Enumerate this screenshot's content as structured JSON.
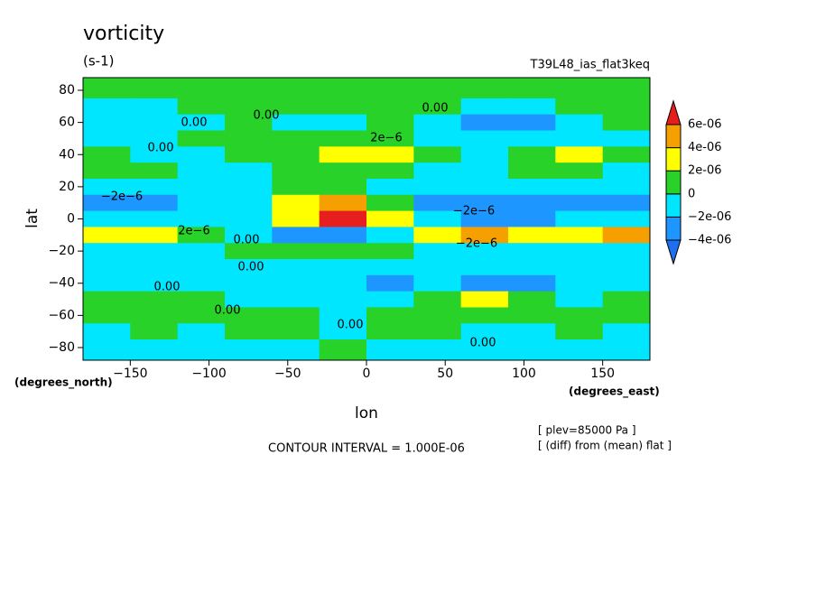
{
  "chart_data": {
    "type": "contourf",
    "title": "vorticity",
    "units": "(s-1)",
    "run": "T39L48_ias_flat3keq",
    "xlabel": "lon",
    "ylabel": "lat",
    "xunits": "(degrees_east)",
    "yunits": "(degrees_north)",
    "footer": "CONTOUR INTERVAL = 1.000E-06",
    "notes": [
      "[ plev=85000 Pa ]",
      "[ (diff) from (mean) flat ]"
    ],
    "xlim": [
      -180,
      180
    ],
    "ylim": [
      -87.86,
      87.86
    ],
    "xticks": [
      {
        "value": -150,
        "label": "−150"
      },
      {
        "value": -100,
        "label": "−100"
      },
      {
        "value": -50,
        "label": "−50"
      },
      0,
      50,
      100,
      150
    ],
    "yticks": [
      80,
      60,
      40,
      20,
      0,
      {
        "value": -20,
        "label": "−20"
      },
      {
        "value": -40,
        "label": "−40"
      },
      {
        "value": -60,
        "label": "−60"
      },
      {
        "value": -80,
        "label": "−80"
      }
    ],
    "levels": [
      {
        "value": -4e-06,
        "label": "−4e-06"
      },
      {
        "value": -2e-06,
        "label": "−2e-06"
      },
      0,
      {
        "value": 2e-06,
        "label": "2e-06"
      },
      {
        "value": 4e-06,
        "label": "4e-06"
      },
      {
        "value": 6e-06,
        "label": "6e-06"
      }
    ],
    "colors": [
      "#1e6ef0",
      "#1e96ff",
      "#00e6ff",
      "#28d228",
      "#ffff00",
      "#f5a000",
      "#e61e1e"
    ],
    "lon": [
      -165,
      -135,
      -105,
      -75,
      -45,
      -15,
      15,
      45,
      75,
      105,
      135,
      165
    ],
    "lat": [
      80,
      70,
      60,
      50,
      40,
      30,
      20,
      10,
      0,
      -10,
      -20,
      -30,
      -40,
      -50,
      -60,
      -70,
      -80
    ],
    "field": [
      [
        5e-07,
        5e-07,
        5e-07,
        5e-07,
        5e-07,
        5e-07,
        5e-07,
        5e-07,
        5e-07,
        5e-07,
        5e-07,
        5e-07
      ],
      [
        -5e-07,
        -5e-07,
        5e-07,
        5e-07,
        5e-07,
        5e-07,
        5e-07,
        5e-07,
        -5e-07,
        -5e-07,
        5e-07,
        5e-07
      ],
      [
        -5e-07,
        -5e-07,
        -5e-07,
        5e-07,
        -5e-07,
        -5e-07,
        5e-07,
        -5e-07,
        -2.5e-06,
        -2.5e-06,
        -5e-07,
        5e-07
      ],
      [
        -5e-07,
        -5e-07,
        5e-07,
        5e-07,
        5e-07,
        1.5e-06,
        5e-07,
        -5e-07,
        -1.5e-06,
        -5e-07,
        -5e-07,
        -5e-07
      ],
      [
        5e-07,
        -5e-07,
        -5e-07,
        5e-07,
        5e-07,
        2.5e-06,
        2.5e-06,
        5e-07,
        -5e-07,
        5e-07,
        2.5e-06,
        5e-07
      ],
      [
        5e-07,
        5e-07,
        -5e-07,
        -5e-07,
        5e-07,
        5e-07,
        5e-07,
        -5e-07,
        -5e-07,
        5e-07,
        5e-07,
        -5e-07
      ],
      [
        -5e-07,
        -5e-07,
        -5e-07,
        -5e-07,
        5e-07,
        5e-07,
        -5e-07,
        -5e-07,
        -5e-07,
        -5e-07,
        -5e-07,
        -5e-07
      ],
      [
        -2.5e-06,
        -2.5e-06,
        -5e-07,
        -5e-07,
        2.5e-06,
        4.5e-06,
        5e-07,
        -2.5e-06,
        -2.5e-06,
        -2.5e-06,
        -2.5e-06,
        -2.5e-06
      ],
      [
        -5e-07,
        -5e-07,
        -5e-07,
        -5e-07,
        2.5e-06,
        6.5e-06,
        2.5e-06,
        -5e-07,
        -2.5e-06,
        -2.5e-06,
        -5e-07,
        -5e-07
      ],
      [
        2.5e-06,
        2.5e-06,
        5e-07,
        -5e-07,
        -2.5e-06,
        -2.5e-06,
        -5e-07,
        2.5e-06,
        4.5e-06,
        2.5e-06,
        2.5e-06,
        4.5e-06
      ],
      [
        -5e-07,
        -5e-07,
        -5e-07,
        5e-07,
        5e-07,
        5e-07,
        5e-07,
        -5e-07,
        -5e-07,
        -5e-07,
        -5e-07,
        -5e-07
      ],
      [
        -5e-07,
        -5e-07,
        -5e-07,
        -5e-07,
        -5e-07,
        -5e-07,
        -5e-07,
        -5e-07,
        -5e-07,
        -5e-07,
        -5e-07,
        -5e-07
      ],
      [
        -5e-07,
        -5e-07,
        -5e-07,
        -5e-07,
        -5e-07,
        -5e-07,
        -2.5e-06,
        -5e-07,
        -2.5e-06,
        -2.5e-06,
        -5e-07,
        -5e-07
      ],
      [
        5e-07,
        5e-07,
        5e-07,
        -5e-07,
        -5e-07,
        -5e-07,
        -5e-07,
        5e-07,
        2.5e-06,
        5e-07,
        -5e-07,
        5e-07
      ],
      [
        5e-07,
        5e-07,
        5e-07,
        5e-07,
        5e-07,
        -5e-07,
        5e-07,
        5e-07,
        5e-07,
        5e-07,
        5e-07,
        5e-07
      ],
      [
        -5e-07,
        5e-07,
        -5e-07,
        5e-07,
        5e-07,
        -5e-07,
        5e-07,
        5e-07,
        -5e-07,
        -5e-07,
        5e-07,
        -5e-07
      ],
      [
        -5e-07,
        -5e-07,
        -5e-07,
        -5e-07,
        -5e-07,
        5e-07,
        -5e-07,
        -5e-07,
        -5e-07,
        -5e-07,
        -5e-07,
        -5e-07
      ]
    ],
    "contour_labels": [
      "0.00",
      "0.00",
      "0.00",
      "0.00",
      "−2e−6",
      "2e−6",
      "−2e−6",
      "2e−6",
      "−2e−6",
      "0.00",
      "0.00",
      "0.00",
      "0.00",
      "0.00",
      "0.00"
    ]
  }
}
